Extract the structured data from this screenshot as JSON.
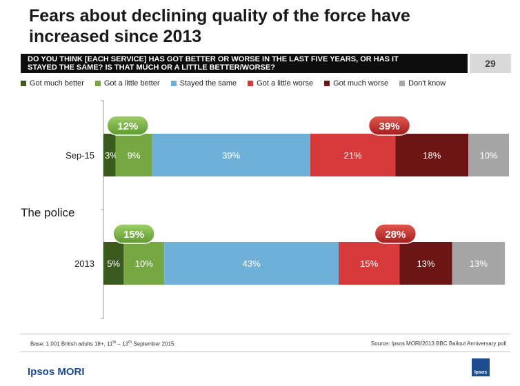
{
  "header": {
    "title_line1": "Fears about declining quality of the force have",
    "title_line2": "increased since 2013",
    "question_line1": "DO YOU THINK [EACH SERVICE] HAS GOT BETTER OR WORSE IN THE LAST FIVE YEARS, OR HAS IT",
    "question_line2": "STAYED THE SAME? IS THAT MUCH OR A LITTLE BETTER/WORSE?",
    "page_number": "29"
  },
  "footer": {
    "base": "Base: 1,001 British adults 18+, 11th – 13th September 2015",
    "source": "Source: Ipsos MORI/2013 BBC Bailout Anniversary poll",
    "brand": "Ipsos MORI",
    "logo_text": "Ipsos"
  },
  "colors": {
    "Got much better": "#3a5a1e",
    "Got a little better": "#77a743",
    "Stayed the same": "#6fb0d8",
    "Got a little worse": "#d73a3a",
    "Got much worse": "#6b1515",
    "Don't know": "#a6a6a6"
  },
  "chart_data": {
    "type": "bar",
    "orientation": "horizontal-stacked",
    "group_label": "The police",
    "categories": [
      "Sep-15",
      "2013"
    ],
    "series": [
      {
        "name": "Got much better",
        "values": [
          3,
          5
        ]
      },
      {
        "name": "Got a little better",
        "values": [
          9,
          10
        ]
      },
      {
        "name": "Stayed the same",
        "values": [
          39,
          43
        ]
      },
      {
        "name": "Got a little worse",
        "values": [
          21,
          15
        ]
      },
      {
        "name": "Got much worse",
        "values": [
          18,
          13
        ]
      },
      {
        "name": "Don't know",
        "values": [
          10,
          13
        ]
      }
    ],
    "data_labels": [
      [
        "3%",
        "9%",
        "39%",
        "21%",
        "18%",
        "10%"
      ],
      [
        "5%",
        "10%",
        "43%",
        "15%",
        "13%",
        "13%"
      ]
    ],
    "better_totals": [
      "12%",
      "15%"
    ],
    "worse_totals": [
      "39%",
      "28%"
    ],
    "legend_position": "top",
    "grid": false
  }
}
